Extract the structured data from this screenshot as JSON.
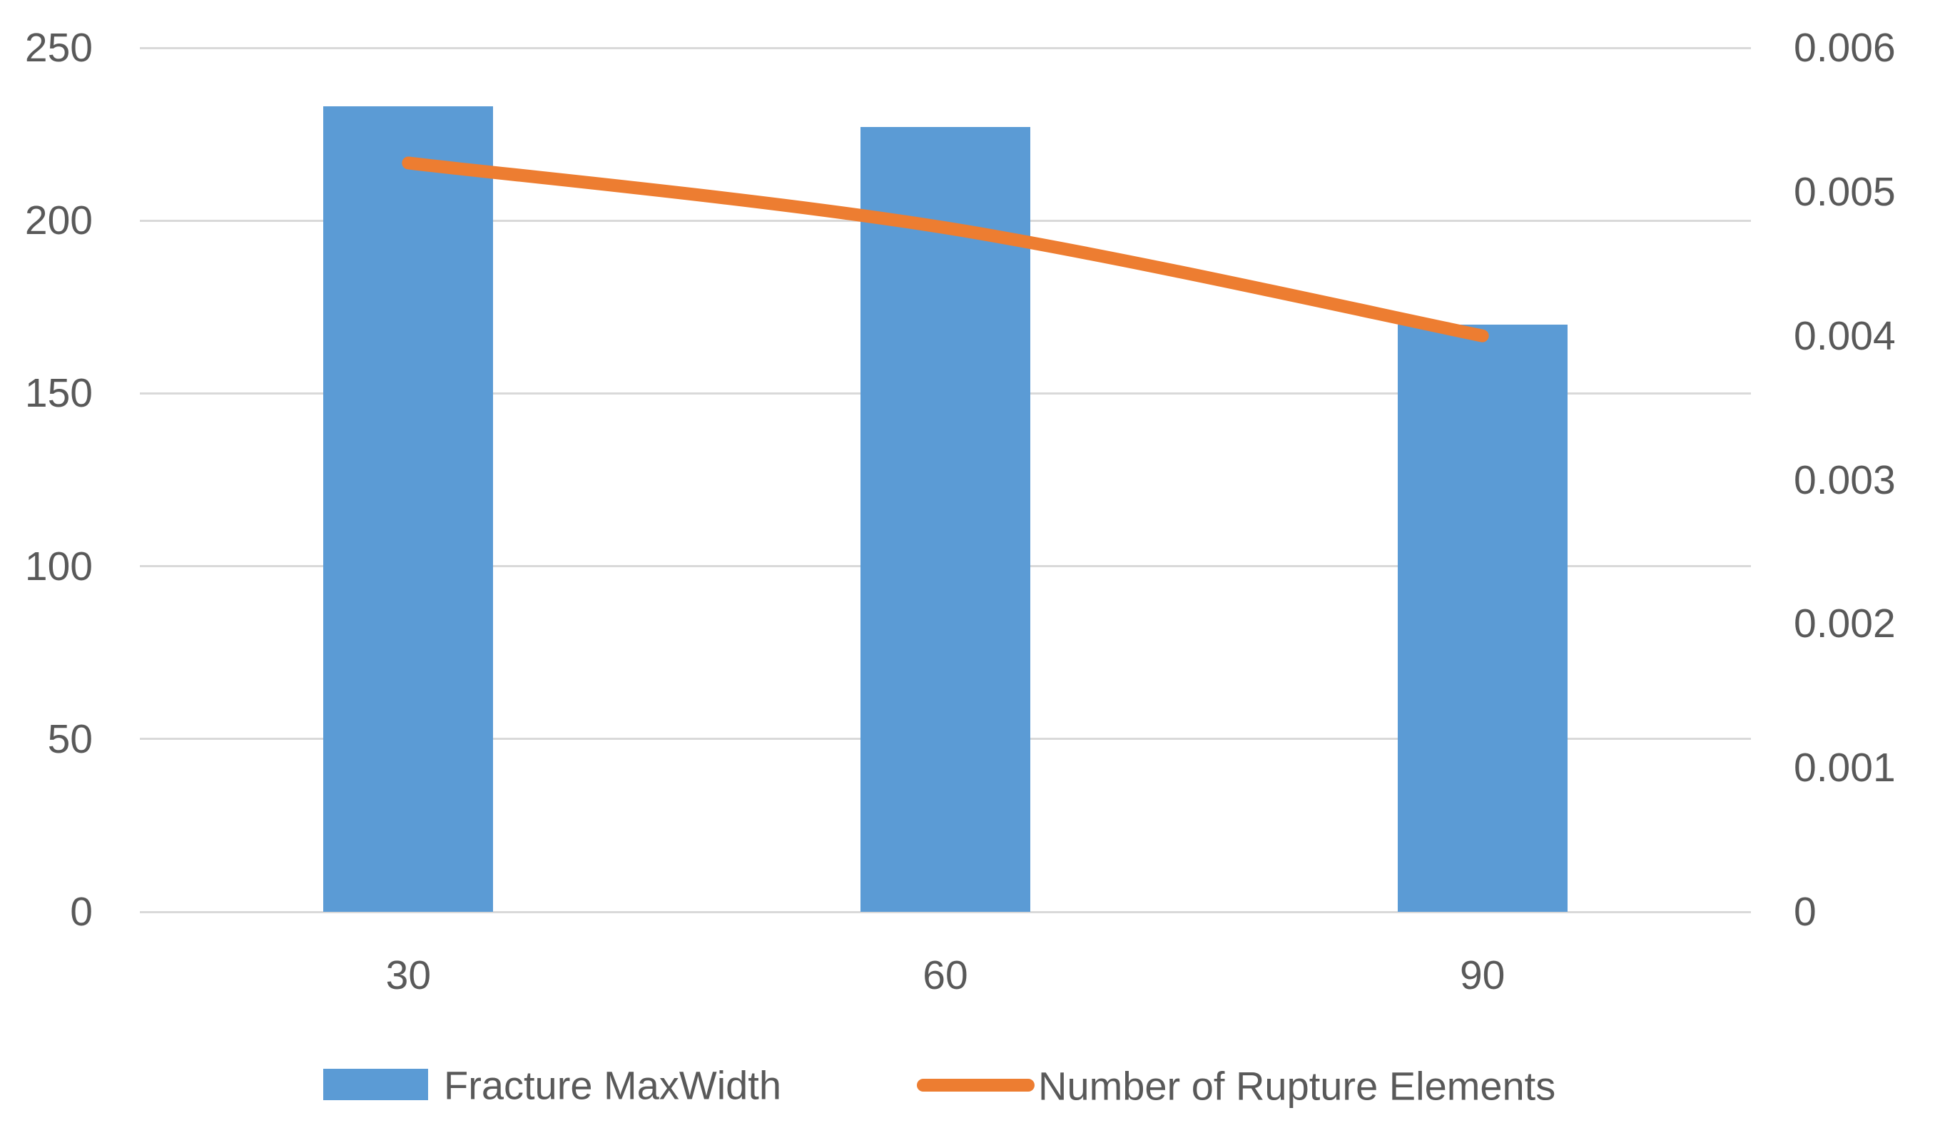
{
  "chart_data": {
    "type": "combo",
    "title": "",
    "categories": [
      "30",
      "60",
      "90"
    ],
    "series": [
      {
        "name": "Fracture MaxWidth",
        "type": "bar",
        "axis": "left",
        "color": "#5B9BD5",
        "values": [
          233,
          227,
          170
        ]
      },
      {
        "name": "Number of Rupture Elements",
        "type": "line",
        "smooth": true,
        "axis": "right",
        "color": "#ED7D31",
        "values": [
          0.0052,
          0.00475,
          0.004
        ]
      }
    ],
    "left_axis": {
      "min": 0,
      "max": 250,
      "step": 50,
      "tick_labels": [
        "0",
        "50",
        "100",
        "150",
        "200",
        "250"
      ]
    },
    "right_axis": {
      "min": 0,
      "max": 0.006,
      "step": 0.001,
      "tick_labels": [
        "0",
        "0.001",
        "0.002",
        "0.003",
        "0.004",
        "0.005",
        "0.006"
      ]
    },
    "grid": true,
    "legend_position": "bottom",
    "colors": {
      "background": "#FFFFFF",
      "gridline": "#D9D9D9",
      "text": "#595959"
    }
  }
}
